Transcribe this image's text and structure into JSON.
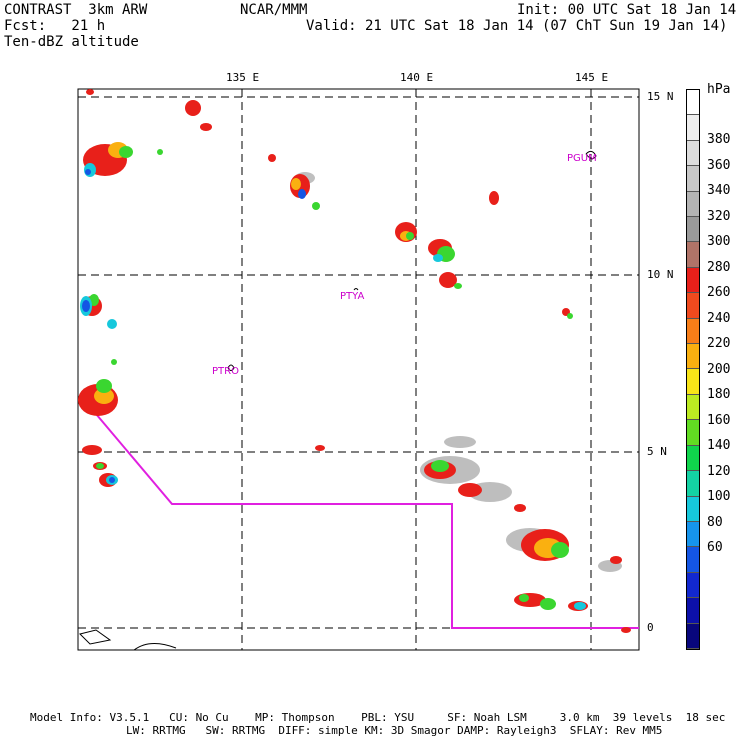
{
  "header": {
    "title_left": "CONTRAST  3km ARW",
    "fcst": "Fcst:   21 h",
    "field": "Ten-dBZ altitude",
    "center": "NCAR/MMM",
    "init": "Init: 00 UTC Sat 18 Jan 14",
    "valid": "Valid: 21 UTC Sat 18 Jan 14 (07 ChT Sun 19 Jan 14)"
  },
  "map": {
    "lon_labels": [
      "135 E",
      "140 E",
      "145 E"
    ],
    "lat_labels": [
      "15 N",
      "10 N",
      "5 N",
      "0"
    ],
    "stations": [
      "PGUM",
      "PTYA",
      "PTRO"
    ]
  },
  "colorbar": {
    "unit": "hPa",
    "levels": [
      "380",
      "360",
      "340",
      "320",
      "300",
      "280",
      "260",
      "240",
      "220",
      "200",
      "180",
      "160",
      "140",
      "120",
      "100",
      "80",
      "60"
    ],
    "colors": [
      "#ffffff",
      "#eeeeee",
      "#dddddd",
      "#c8c8c8",
      "#b4b4b4",
      "#9a9a9a",
      "#b07468",
      "#e8201a",
      "#f04a1e",
      "#f87e18",
      "#fab010",
      "#f8e418",
      "#bcea22",
      "#62dc22",
      "#10d44c",
      "#14d2a4",
      "#16c8dc",
      "#1694ec",
      "#1456e4",
      "#1228d0",
      "#0c10aa",
      "#08067c"
    ]
  },
  "footer": {
    "line1": "Model Info: V3.5.1   CU: No Cu    MP: Thompson    PBL: YSU     SF: Noah LSM     3.0 km  39 levels  18 sec",
    "line2": "LW: RRTMG   SW: RRTMG  DIFF: simple KM: 3D Smagor DAMP: Rayleigh3  SFLAY: Rev MM5"
  }
}
